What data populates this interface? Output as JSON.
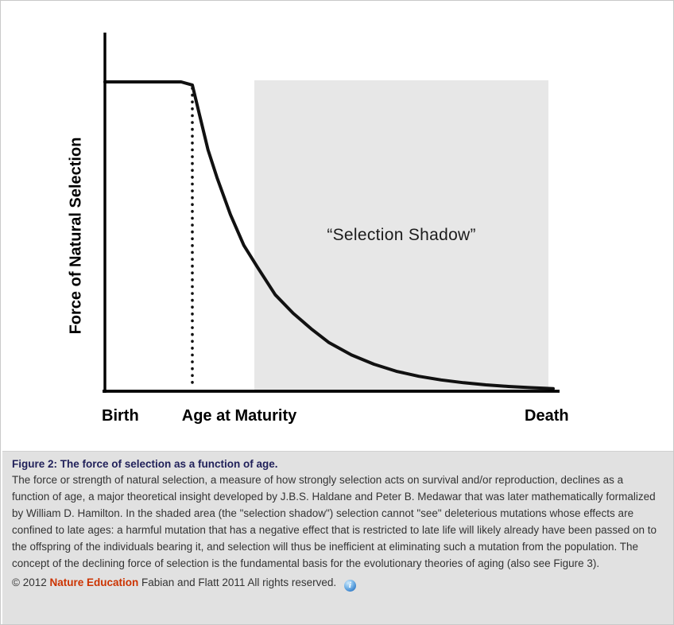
{
  "figure": {
    "ylabel": "Force of Natural Selection",
    "x_ticks": [
      "Birth",
      "Age at Maturity",
      "Death"
    ],
    "shadow_label": "“Selection Shadow”"
  },
  "caption": {
    "title": "Figure 2: The force of selection as a function of age.",
    "body": "The force or strength of natural selection, a measure of how strongly selection acts on survival and/or reproduction, declines as a function of age, a major theoretical insight developed by J.B.S. Haldane and Peter B. Medawar that was later mathematically formalized by William D. Hamilton. In the shaded area (the \"selection shadow\") selection cannot \"see\" deleterious mutations whose effects are confined to late ages: a harmful mutation that has a negative effect that is restricted to late life will likely already have been passed on to the offspring of the individuals bearing it, and selection will thus be inefficient at eliminating such a mutation from the population. The concept of the declining force of selection is the fundamental basis for the evolutionary theories of aging (also see Figure 3).",
    "copyright_prefix": "© 2012",
    "copyright_brand": "Nature Education",
    "copyright_suffix": "Fabian and Flatt 2011 All rights reserved.",
    "info_icon_glyph": "i"
  },
  "chart_data": {
    "type": "line",
    "title": "",
    "xlabel": "",
    "ylabel": "Force of Natural Selection",
    "x_range": [
      0,
      1
    ],
    "y_range": [
      0,
      1
    ],
    "grid": false,
    "legend": "none",
    "x_tick_labels": [
      "Birth",
      "Age at Maturity",
      "Death"
    ],
    "x_tick_positions": [
      0.04,
      0.195,
      0.99
    ],
    "series": [
      {
        "name": "Force of natural selection",
        "x": [
          0,
          0.06,
          0.12,
          0.17,
          0.195,
          0.21,
          0.23,
          0.25,
          0.28,
          0.31,
          0.34,
          0.38,
          0.42,
          0.46,
          0.5,
          0.55,
          0.6,
          0.65,
          0.7,
          0.75,
          0.8,
          0.85,
          0.9,
          0.95,
          1.0
        ],
        "y": [
          1,
          1,
          1,
          1,
          0.99,
          0.9,
          0.78,
          0.69,
          0.57,
          0.47,
          0.4,
          0.31,
          0.25,
          0.2,
          0.155,
          0.115,
          0.085,
          0.062,
          0.046,
          0.034,
          0.025,
          0.018,
          0.013,
          0.009,
          0.006
        ]
      }
    ],
    "annotations": [
      {
        "text": "“Selection Shadow”",
        "x": 0.66,
        "y": 0.5
      }
    ],
    "shaded_region": {
      "label": "Selection Shadow",
      "x_start": 0.333,
      "x_end": 0.99,
      "y_start": 0,
      "y_end": 1,
      "color": "#e7e7e7"
    },
    "reference_line": {
      "type": "vertical-dotted",
      "x": 0.195,
      "at": "Age at Maturity"
    }
  }
}
